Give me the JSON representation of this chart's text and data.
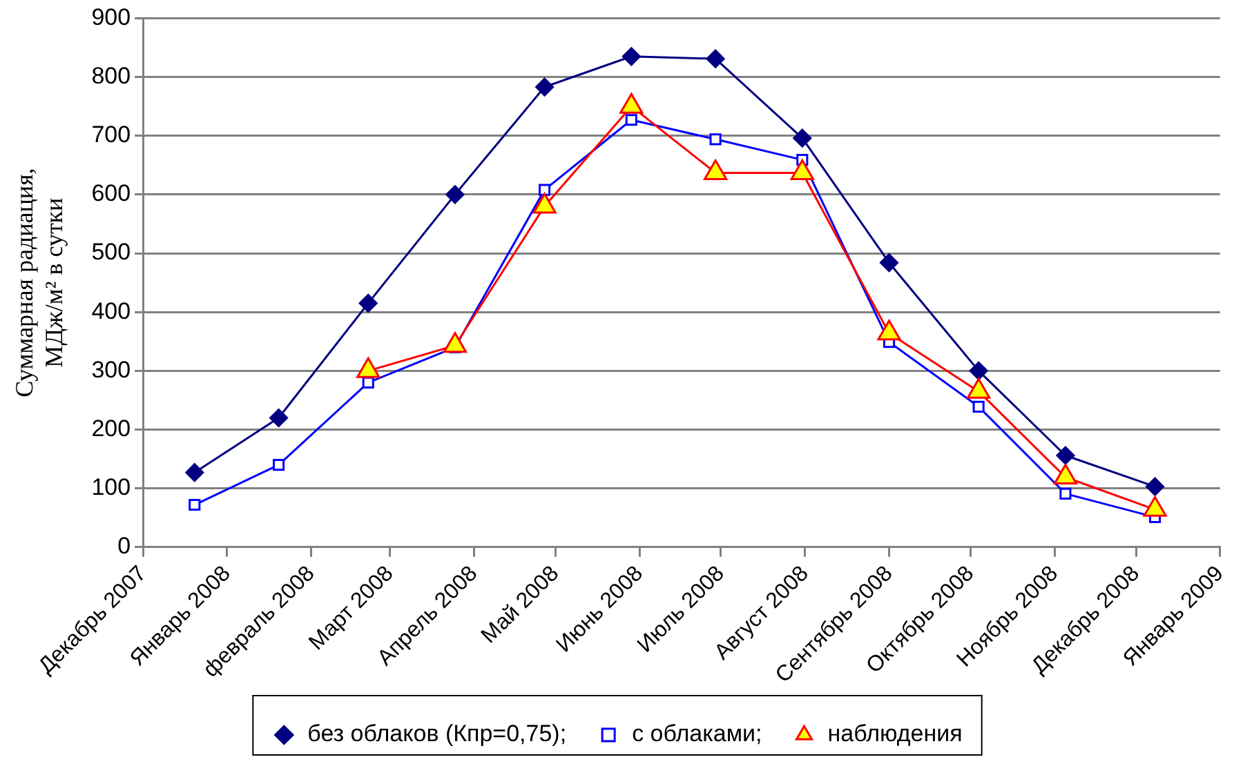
{
  "chart_data": {
    "type": "line",
    "ylabel": "Суммарная радиация,\nМДж/м² в сутки",
    "x": [
      "2007-12-20",
      "2008-01-20",
      "2008-02-22",
      "2008-03-25",
      "2008-04-27",
      "2008-05-29",
      "2008-06-29",
      "2008-07-31",
      "2008-09-01",
      "2008-10-04",
      "2008-11-05",
      "2008-12-08"
    ],
    "series": [
      {
        "name": "без облаков (Кпр=0,75);",
        "color": "#000080",
        "marker": "diamond",
        "values": [
          127,
          220,
          415,
          600,
          783,
          835,
          831,
          696,
          484,
          300,
          156,
          103
        ]
      },
      {
        "name": "с облаками;",
        "color": "#0000ff",
        "marker": "square",
        "values": [
          72,
          140,
          280,
          340,
          608,
          727,
          694,
          659,
          349,
          239,
          91,
          51
        ]
      },
      {
        "name": "наблюдения",
        "color": "#ff0000",
        "marker": "triangle",
        "values": [
          null,
          null,
          300,
          343,
          580,
          750,
          637,
          637,
          364,
          265,
          119,
          64
        ]
      }
    ],
    "xlim": [
      "2007-12-01",
      "2009-01-01"
    ],
    "xticks": [
      {
        "value": "2007-12-01",
        "label": "Декабрь 2007"
      },
      {
        "value": "2008-01-01",
        "label": "Январь 2008"
      },
      {
        "value": "2008-02-01",
        "label": "февраль 2008"
      },
      {
        "value": "2008-03-01",
        "label": "Март 2008"
      },
      {
        "value": "2008-04-01",
        "label": "Апрель 2008"
      },
      {
        "value": "2008-05-01",
        "label": "Май 2008"
      },
      {
        "value": "2008-06-01",
        "label": "Июнь 2008"
      },
      {
        "value": "2008-07-01",
        "label": "Июль 2008"
      },
      {
        "value": "2008-08-01",
        "label": "Август 2008"
      },
      {
        "value": "2008-09-01",
        "label": "Сентябрь 2008"
      },
      {
        "value": "2008-10-01",
        "label": "Октябрь 2008"
      },
      {
        "value": "2008-11-01",
        "label": "Ноябрь 2008"
      },
      {
        "value": "2008-12-01",
        "label": "Декабрь 2008"
      },
      {
        "value": "2009-01-01",
        "label": "Январь 2009"
      }
    ],
    "ylim": [
      0,
      900
    ],
    "yticks": [
      0,
      100,
      200,
      300,
      400,
      500,
      600,
      700,
      800,
      900
    ],
    "grid": "y",
    "legend": "bottom",
    "line_style": "solid"
  }
}
